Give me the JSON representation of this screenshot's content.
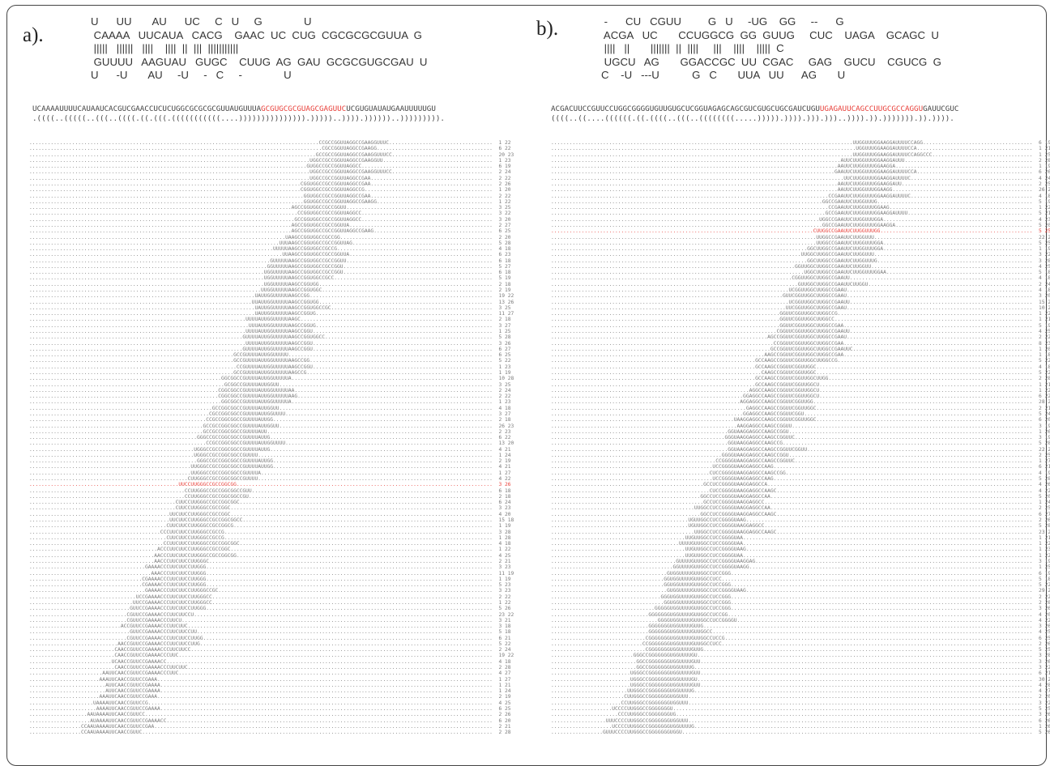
{
  "panel_a": {
    "label": "a).",
    "hairpin_lines": [
      "U      UU       AU      UC     C   U     G              U",
      " CAAAA   UUCAUA   CACG    GAAC  UC  CUG  CGCGCGCGUUA  G",
      " |||||   ||||||   ||||    ||||  ||  |||  |||||||||||",
      " GUUUU   AAGUAU   GUGC    CUUG  AG  GAU  GCGCGUGCGAU  U",
      "U      -U       AU     -U     -   C     -              U"
    ],
    "sequence": "UCAAAAUUUUCAUAAUCACGUCGAACCUCUCUGGCGCGCGCGUUAUGUUUAGCGUGCGCGUAGCGAGUUCUCGUGUAUAUGAAUUUUUGU",
    "sequence_highlight": "GCGUGCGCGUAGCGAGUUC",
    "structure": ".((((..(((((..(((..((((.((.(((.(((((((((((....))))))))))))))).)))))..)))).))))))..)))))))))."
  },
  "panel_b": {
    "label": "b).",
    "hairpin_lines": [
      " -      CU   CGUU         G   U     -UG    GG     --      G",
      " ACGA   UC       CCUGGCG  GG  GUUG     CUC    UAGA    GCAGC  U",
      " ||||   ||       |||||||  ||  ||||     |||    ||||    |||||  C",
      " UGCU   AG       GGACCGC  UU  CGAC     GAG    GUCU    CGUCG  G",
      "C    -U   ---U           G   C       UUA   UU      AG       U"
    ],
    "sequence": "ACGACUUCCGUUCCUGGCGGGGUGUUGUGCUCGGUAGAGCAGCGUCGUGCUGCGAUCUGUUGAGAUUCAGCCUUGCGCCAGGUGAUUCGUC",
    "sequence_highlight": "UGAGAUUCAGCCUUGCGCCAGGU",
    "structure": "((((..((....((((((.((.((((..(((..((((((((.....))))).)))).))).)))..)))).)).))))))).)).))))."
  },
  "colors": {
    "highlight": "#e8403a",
    "text": "#333333",
    "reads": "#7a7a7a"
  }
}
